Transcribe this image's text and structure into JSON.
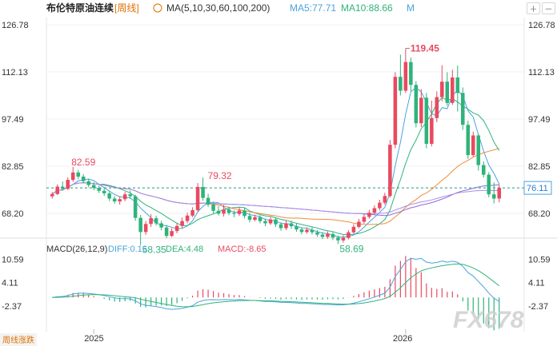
{
  "header": {
    "title": "布伦特原油连续",
    "period": "[周线]",
    "ma_label": "MA(5,10,30,60,100,200)",
    "ma5": "MA5:77.71",
    "ma10": "MA10:88.66",
    "ma_more": "M"
  },
  "price_axis": {
    "ticks": [
      "126.78",
      "112.13",
      "97.49",
      "82.85",
      "68.20"
    ],
    "current_price": "76.11"
  },
  "annotations": {
    "high": "119.45",
    "left_peak": "82.59",
    "mid_peak": "79.32",
    "low1": "58.35",
    "low2": "58.69"
  },
  "macd": {
    "label": "MACD(26,12,9)",
    "diff": "DIFF:0.16",
    "dea": "DEA:4.48",
    "macd": "MACD:-8.65",
    "ticks": [
      "10.59",
      "4.11",
      "-2.37"
    ]
  },
  "time_axis": {
    "labels": [
      "2025",
      "2026"
    ]
  },
  "watermark": "FX678",
  "corner_tag": "周线涨跌",
  "colors": {
    "up": "#e84a5f",
    "down": "#2fb37a",
    "ma5": "#4aa3df",
    "ma10": "#2fb37a",
    "ma30": "#f08c3a",
    "ma60": "#8e6bd9",
    "ma100": "#a98ee8",
    "price_line": "#1a9a8a"
  },
  "chart_data": {
    "type": "candlestick",
    "y_range": [
      61,
      129
    ],
    "candles": [
      [
        73.5,
        74.2,
        72.8,
        74.8
      ],
      [
        74.2,
        76.5,
        73.9,
        77.2
      ],
      [
        76.5,
        75.8,
        75.2,
        78.1
      ],
      [
        75.8,
        78.6,
        75.5,
        79.4
      ],
      [
        78.6,
        80.9,
        78.0,
        82.59
      ],
      [
        80.9,
        79.6,
        78.8,
        81.7
      ],
      [
        79.6,
        78.2,
        77.6,
        80.4
      ],
      [
        78.2,
        77.0,
        76.3,
        79.0
      ],
      [
        77.0,
        76.1,
        75.4,
        77.9
      ],
      [
        76.1,
        75.2,
        74.5,
        76.8
      ],
      [
        75.2,
        74.4,
        73.6,
        76.0
      ],
      [
        74.4,
        72.8,
        72.0,
        75.1
      ],
      [
        72.8,
        71.9,
        71.2,
        73.6
      ],
      [
        71.9,
        72.6,
        70.9,
        73.4
      ],
      [
        72.6,
        74.1,
        72.0,
        74.9
      ],
      [
        74.1,
        73.5,
        72.7,
        75.3
      ],
      [
        73.5,
        66.8,
        65.9,
        74.0
      ],
      [
        66.8,
        62.4,
        58.35,
        67.7
      ],
      [
        62.4,
        64.9,
        61.5,
        65.8
      ],
      [
        64.9,
        66.7,
        64.0,
        67.9
      ],
      [
        66.7,
        65.1,
        64.4,
        67.5
      ],
      [
        65.1,
        63.8,
        62.9,
        65.9
      ],
      [
        63.8,
        61.2,
        60.5,
        64.6
      ],
      [
        61.2,
        62.7,
        60.8,
        63.6
      ],
      [
        62.7,
        64.3,
        62.0,
        65.1
      ],
      [
        64.3,
        65.8,
        63.6,
        66.9
      ],
      [
        65.8,
        67.5,
        65.1,
        68.4
      ],
      [
        67.5,
        69.2,
        67.0,
        70.1
      ],
      [
        69.2,
        76.4,
        68.8,
        77.6
      ],
      [
        76.4,
        73.0,
        72.1,
        79.32
      ],
      [
        73.0,
        70.9,
        70.2,
        74.3
      ],
      [
        70.9,
        69.0,
        68.1,
        71.8
      ],
      [
        69.0,
        68.1,
        67.5,
        70.4
      ],
      [
        68.1,
        69.4,
        67.2,
        70.8
      ],
      [
        69.4,
        68.3,
        67.6,
        70.3
      ],
      [
        68.3,
        68.0,
        67.0,
        69.1
      ],
      [
        68.0,
        69.1,
        67.4,
        70.2
      ],
      [
        69.1,
        67.4,
        66.6,
        69.9
      ],
      [
        67.4,
        66.2,
        65.4,
        68.3
      ],
      [
        66.2,
        67.0,
        65.7,
        67.8
      ],
      [
        67.0,
        65.8,
        65.1,
        67.6
      ],
      [
        65.8,
        65.1,
        64.2,
        66.6
      ],
      [
        65.1,
        66.3,
        64.6,
        67.1
      ],
      [
        66.3,
        64.8,
        64.0,
        66.9
      ],
      [
        64.8,
        63.6,
        62.8,
        65.4
      ],
      [
        63.6,
        65.1,
        63.0,
        65.9
      ],
      [
        65.1,
        64.2,
        63.4,
        66.0
      ],
      [
        64.2,
        63.2,
        62.5,
        65.0
      ],
      [
        63.2,
        62.4,
        61.7,
        63.9
      ],
      [
        62.4,
        63.1,
        61.9,
        63.8
      ],
      [
        63.1,
        62.3,
        61.6,
        63.9
      ],
      [
        62.3,
        61.6,
        60.9,
        63.0
      ],
      [
        61.6,
        60.9,
        60.2,
        62.4
      ],
      [
        60.9,
        61.8,
        60.3,
        62.6
      ],
      [
        61.8,
        60.7,
        59.9,
        62.4
      ],
      [
        60.7,
        59.8,
        58.69,
        61.3
      ],
      [
        59.8,
        60.6,
        59.1,
        61.4
      ],
      [
        60.6,
        62.3,
        60.1,
        63.0
      ],
      [
        62.3,
        64.0,
        61.9,
        64.8
      ],
      [
        64.0,
        65.6,
        63.5,
        66.5
      ],
      [
        65.6,
        67.1,
        65.0,
        68.0
      ],
      [
        67.1,
        68.4,
        66.5,
        69.3
      ],
      [
        68.4,
        69.8,
        67.8,
        70.7
      ],
      [
        69.8,
        71.5,
        69.1,
        72.4
      ],
      [
        71.5,
        73.6,
        70.9,
        74.6
      ],
      [
        73.6,
        89.5,
        73.1,
        91.0
      ],
      [
        89.5,
        110.6,
        88.4,
        112.0
      ],
      [
        110.6,
        106.3,
        104.8,
        117.5
      ],
      [
        106.3,
        115.2,
        105.6,
        119.45
      ],
      [
        115.2,
        108.1,
        106.2,
        116.6
      ],
      [
        108.1,
        96.2,
        94.9,
        109.3
      ],
      [
        96.2,
        104.1,
        95.0,
        106.8
      ],
      [
        104.1,
        89.8,
        88.4,
        105.6
      ],
      [
        89.8,
        97.8,
        89.0,
        103.2
      ],
      [
        97.8,
        104.3,
        96.5,
        106.1
      ],
      [
        104.3,
        109.1,
        103.0,
        114.2
      ],
      [
        109.1,
        102.5,
        101.6,
        112.0
      ],
      [
        102.5,
        110.4,
        101.9,
        112.8
      ],
      [
        110.4,
        105.6,
        99.8,
        114.1
      ],
      [
        105.6,
        95.7,
        94.1,
        107.3
      ],
      [
        95.7,
        86.3,
        85.1,
        97.0
      ],
      [
        86.3,
        92.4,
        85.8,
        93.6
      ],
      [
        92.4,
        83.2,
        81.5,
        92.9
      ],
      [
        83.2,
        80.2,
        79.3,
        84.3
      ],
      [
        80.2,
        74.1,
        73.2,
        81.0
      ],
      [
        74.1,
        72.8,
        71.3,
        77.8
      ],
      [
        72.8,
        76.1,
        71.6,
        77.2
      ]
    ]
  }
}
